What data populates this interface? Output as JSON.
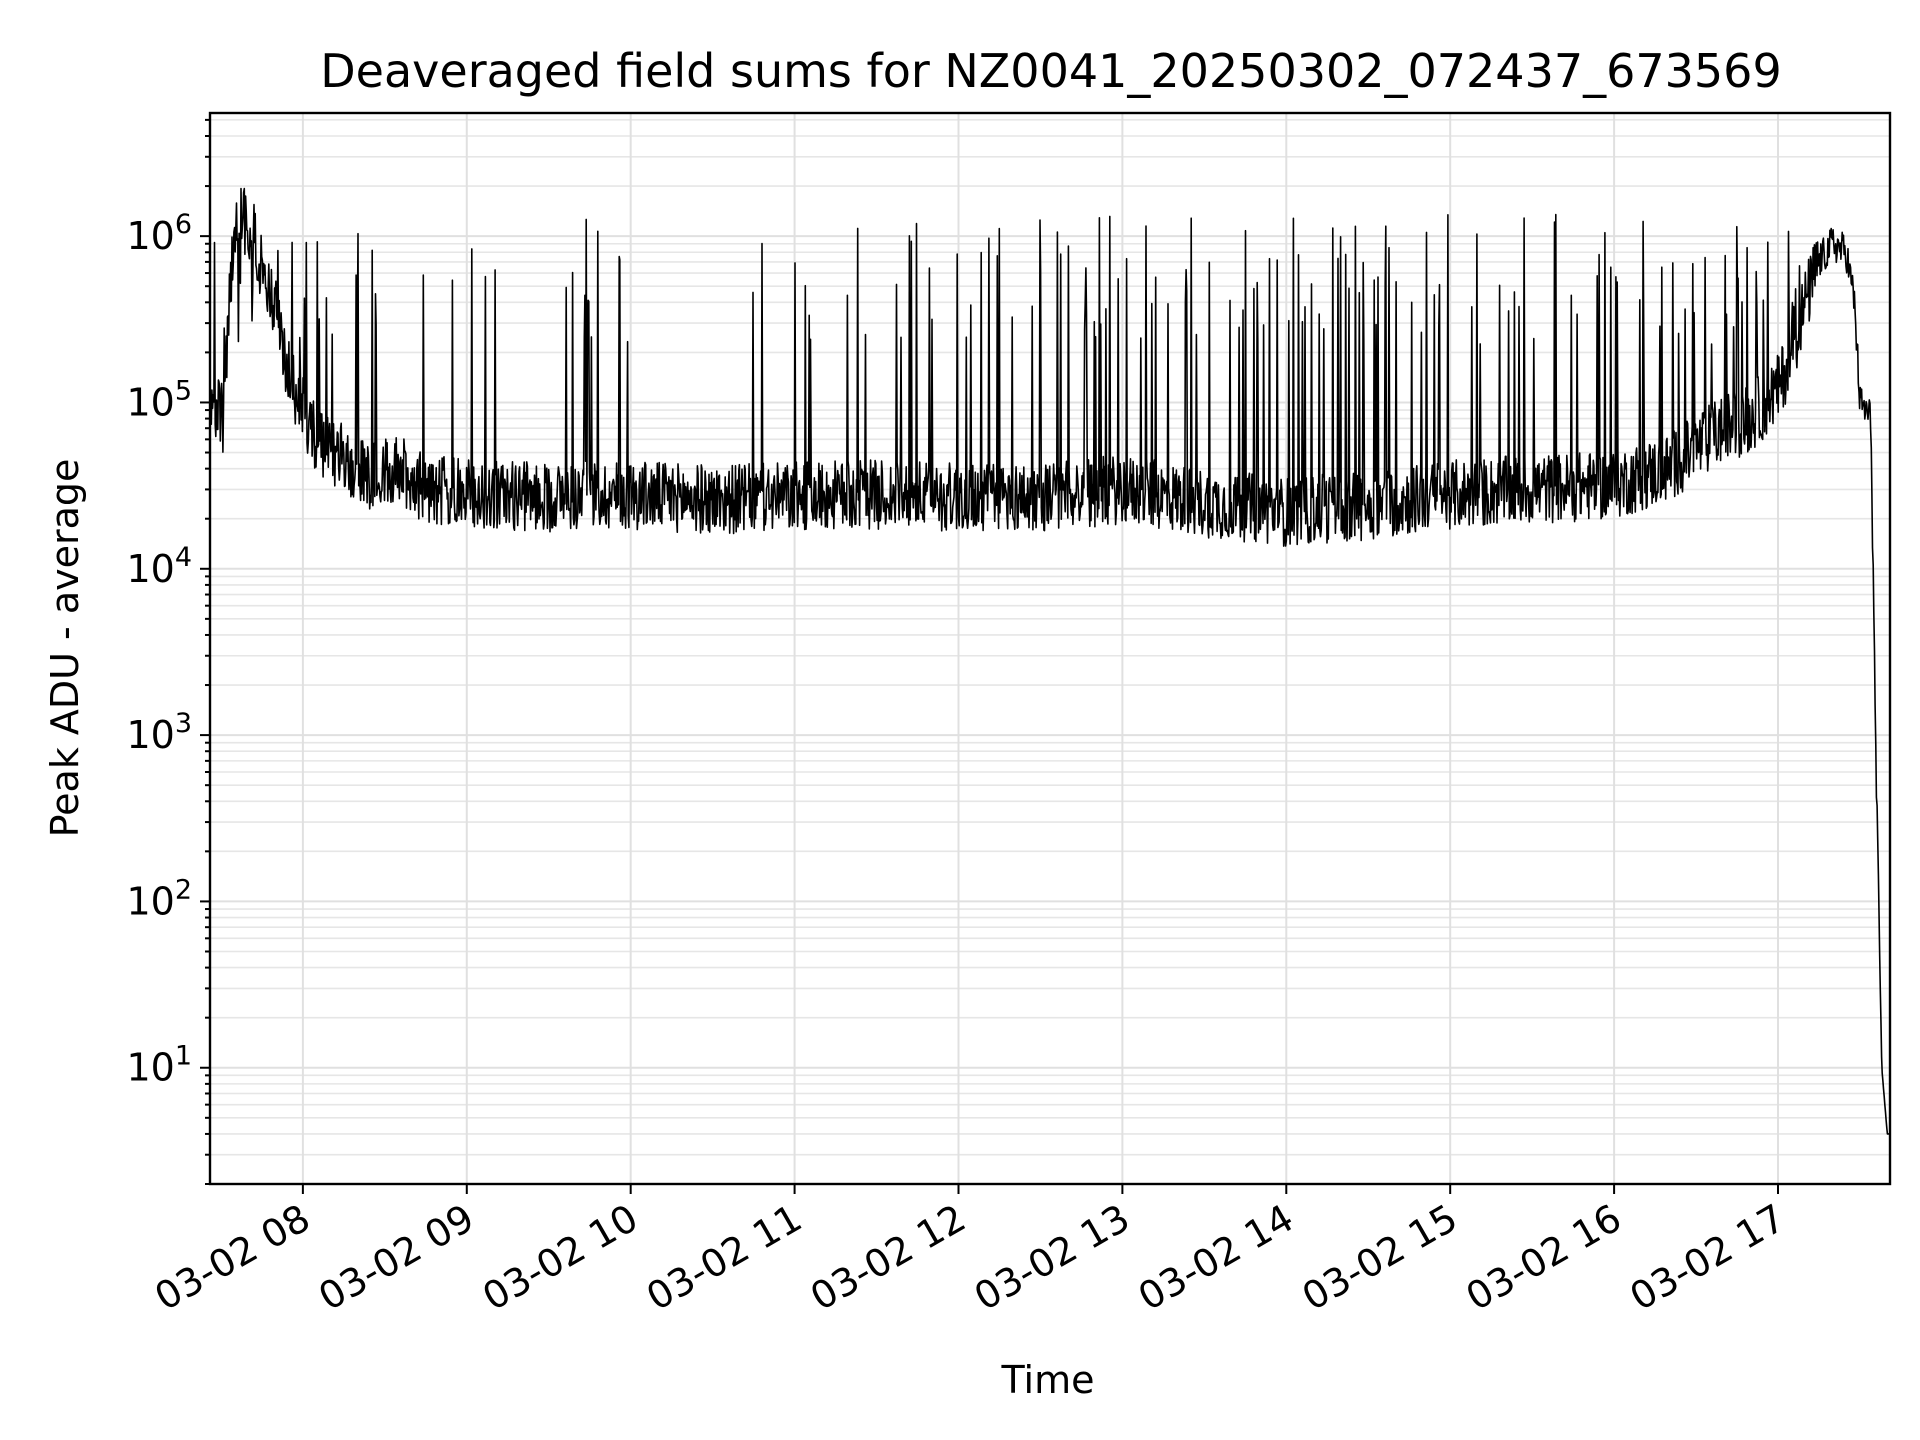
{
  "chart_data": {
    "type": "line",
    "title": "Deaveraged field sums for NZ0041_20250302_072437_673569",
    "xlabel": "Time",
    "ylabel": "Peak ADU - average",
    "yscale": "log",
    "ylim": [
      2,
      5500000
    ],
    "xlim": [
      "2025-03-02 07:26",
      "2025-03-02 17:41"
    ],
    "grid": "major and minor",
    "line_color": "#000000",
    "x_ticks": [
      {
        "value": "2025-03-02 08:00",
        "label": "03-02 08"
      },
      {
        "value": "2025-03-02 09:00",
        "label": "03-02 09"
      },
      {
        "value": "2025-03-02 10:00",
        "label": "03-02 10"
      },
      {
        "value": "2025-03-02 11:00",
        "label": "03-02 11"
      },
      {
        "value": "2025-03-02 12:00",
        "label": "03-02 12"
      },
      {
        "value": "2025-03-02 13:00",
        "label": "03-02 13"
      },
      {
        "value": "2025-03-02 14:00",
        "label": "03-02 14"
      },
      {
        "value": "2025-03-02 15:00",
        "label": "03-02 15"
      },
      {
        "value": "2025-03-02 16:00",
        "label": "03-02 16"
      },
      {
        "value": "2025-03-02 17:00",
        "label": "03-02 17"
      }
    ],
    "y_ticks": [
      {
        "value": 10,
        "base": "10",
        "exp": "1"
      },
      {
        "value": 100,
        "base": "10",
        "exp": "2"
      },
      {
        "value": 1000,
        "base": "10",
        "exp": "3"
      },
      {
        "value": 10000,
        "base": "10",
        "exp": "4"
      },
      {
        "value": 100000,
        "base": "10",
        "exp": "5"
      },
      {
        "value": 1000000,
        "base": "10",
        "exp": "6"
      }
    ],
    "series": [
      {
        "x": [
          "2025-03-02 07:26",
          "2025-03-02 07:29",
          "2025-03-02 07:31",
          "2025-03-02 07:33",
          "2025-03-02 07:36",
          "2025-03-02 07:38",
          "2025-03-02 07:40",
          "2025-03-02 07:43",
          "2025-03-02 07:46",
          "2025-03-02 07:50",
          "2025-03-02 07:55",
          "2025-03-02 08:00",
          "2025-03-02 08:05",
          "2025-03-02 08:15",
          "2025-03-02 08:25",
          "2025-03-02 08:35",
          "2025-03-02 08:45",
          "2025-03-02 09:00",
          "2025-03-02 09:30",
          "2025-03-02 10:00",
          "2025-03-02 10:30",
          "2025-03-02 11:00",
          "2025-03-02 11:30",
          "2025-03-02 12:00",
          "2025-03-02 12:30",
          "2025-03-02 13:00",
          "2025-03-02 13:30",
          "2025-03-02 14:00",
          "2025-03-02 14:30",
          "2025-03-02 15:00",
          "2025-03-02 15:30",
          "2025-03-02 16:00",
          "2025-03-02 16:20",
          "2025-03-02 16:40",
          "2025-03-02 16:50",
          "2025-03-02 17:00",
          "2025-03-02 17:05",
          "2025-03-02 17:10",
          "2025-03-02 17:15",
          "2025-03-02 17:20",
          "2025-03-02 17:25",
          "2025-03-02 17:28",
          "2025-03-02 17:30",
          "2025-03-02 17:32",
          "2025-03-02 17:34",
          "2025-03-02 17:36",
          "2025-03-02 17:38",
          "2025-03-02 17:40",
          "2025-03-02 17:41"
        ],
        "y": [
          90000,
          85000,
          80000,
          400000,
          1500000,
          1300000,
          1100000,
          900000,
          500000,
          350000,
          150000,
          90000,
          60000,
          45000,
          35000,
          40000,
          30000,
          28000,
          27000,
          28000,
          26000,
          27000,
          28000,
          27000,
          27000,
          30000,
          25000,
          22000,
          24000,
          28000,
          30000,
          32000,
          40000,
          70000,
          80000,
          120000,
          200000,
          400000,
          700000,
          900000,
          800000,
          400000,
          100000,
          90000,
          80000,
          500,
          10,
          4,
          4
        ]
      }
    ]
  }
}
